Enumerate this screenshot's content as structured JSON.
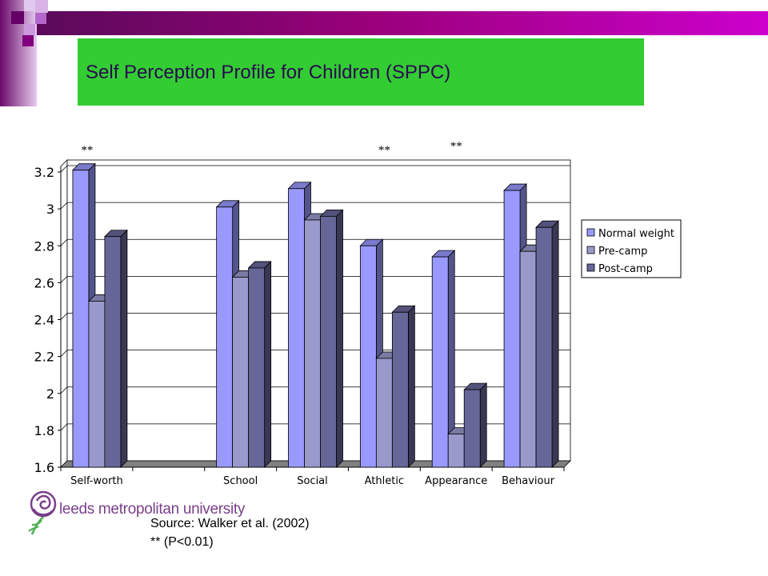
{
  "slide": {
    "title": "Self Perception Profile for Children (SPPC)",
    "source": "Source: Walker et al. (2002)",
    "significance_note": "** (P<0.01)"
  },
  "logo": {
    "text": "leeds metropolitan university"
  },
  "colors": {
    "title_bg": "#33cc33",
    "header_purple": "#99007a",
    "series": [
      "#9999ff",
      "#9999cc",
      "#666699"
    ]
  },
  "chart_data": {
    "type": "bar",
    "categories": [
      "Self-worth",
      "",
      "School",
      "Social",
      "Athletic",
      "Appearance",
      "Behaviour"
    ],
    "series": [
      {
        "name": "Normal weight",
        "values": [
          3.21,
          null,
          3.01,
          3.11,
          2.8,
          2.74,
          3.1
        ]
      },
      {
        "name": "Pre-camp",
        "values": [
          2.5,
          null,
          2.63,
          2.94,
          2.19,
          1.78,
          2.77
        ]
      },
      {
        "name": "Post-camp",
        "values": [
          2.85,
          null,
          2.68,
          2.96,
          2.44,
          2.02,
          2.9
        ]
      }
    ],
    "ylim": [
      1.6,
      3.2
    ],
    "yticks": [
      "1.6",
      "1.8",
      "2",
      "2.2",
      "2.4",
      "2.6",
      "2.8",
      "3",
      "3.2"
    ],
    "significance_markers": [
      {
        "category": "Self-worth",
        "text": "**"
      },
      {
        "category": "Athletic",
        "text": "**"
      },
      {
        "category": "Appearance",
        "text": "**"
      }
    ],
    "legend_position": "right",
    "grid": true
  }
}
